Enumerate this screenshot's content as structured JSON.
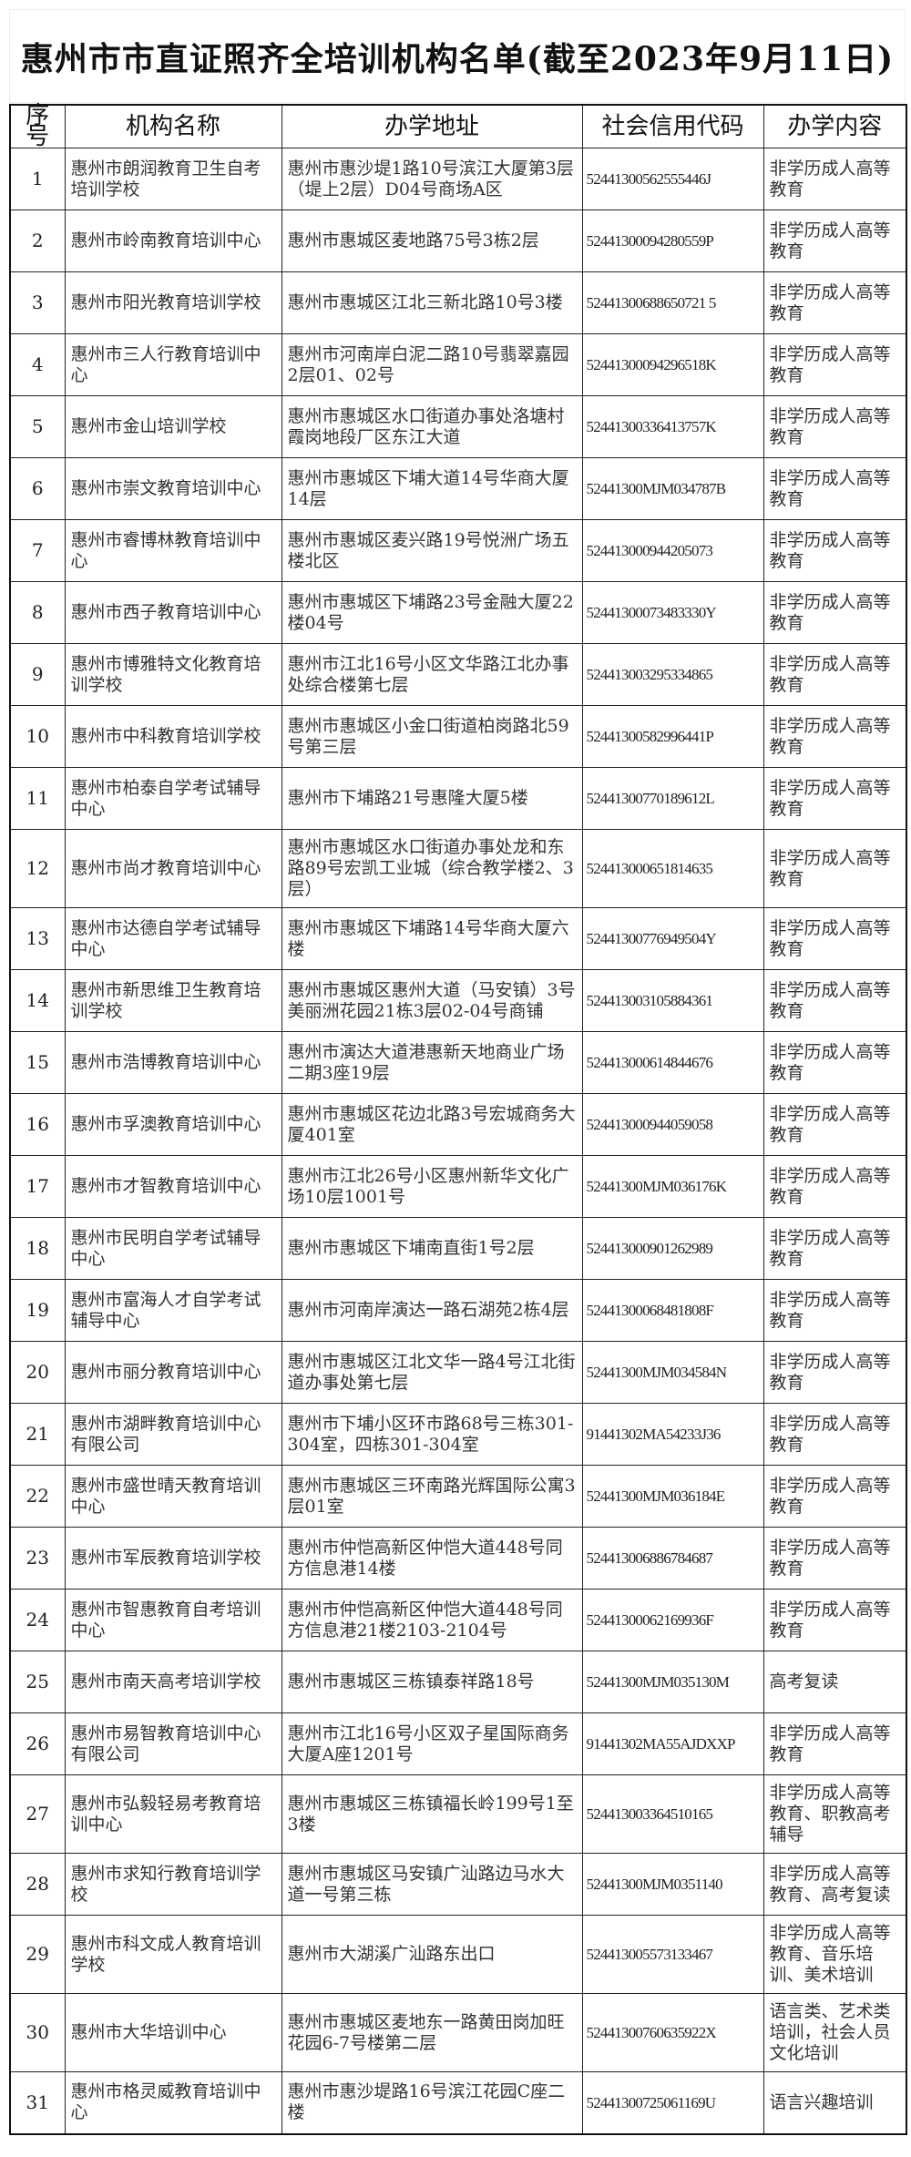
{
  "title": "惠州市市直证照齐全培训机构名单(截至2023年9月11日)",
  "columns": [
    "序号",
    "机构名称",
    "办学地址",
    "社会信用代码",
    "办学内容"
  ],
  "rows": [
    {
      "no": "1",
      "name": "惠州市朗润教育卫生自考培训学校",
      "address": "惠州市惠沙堤1路10号滨江大厦第3层（堤上2层）D04号商场A区",
      "code": "52441300562555446J",
      "content": "非学历成人高等教育"
    },
    {
      "no": "2",
      "name": "惠州市岭南教育培训中心",
      "address": "惠州市惠城区麦地路75号3栋2层",
      "code": "52441300094280559P",
      "content": "非学历成人高等教育"
    },
    {
      "no": "3",
      "name": "惠州市阳光教育培训学校",
      "address": "惠州市惠城区江北三新北路10号3楼",
      "code": "52441300688650721 5",
      "content": "非学历成人高等教育"
    },
    {
      "no": "4",
      "name": "惠州市三人行教育培训中心",
      "address": "惠州市河南岸白泥二路10号翡翠嘉园2层01、02号",
      "code": "52441300094296518K",
      "content": "非学历成人高等教育"
    },
    {
      "no": "5",
      "name": "惠州市金山培训学校",
      "address": "惠州市惠城区水口街道办事处洛塘村霞岗地段厂区东江大道",
      "code": "52441300336413757K",
      "content": "非学历成人高等教育"
    },
    {
      "no": "6",
      "name": "惠州市崇文教育培训中心",
      "address": "惠州市惠城区下埔大道14号华商大厦14层",
      "code": "52441300MJM034787B",
      "content": "非学历成人高等教育"
    },
    {
      "no": "7",
      "name": "惠州市睿博林教育培训中心",
      "address": "惠州市惠城区麦兴路19号悦洲广场五楼北区",
      "code": "524413000944205073",
      "content": "非学历成人高等教育"
    },
    {
      "no": "8",
      "name": "惠州市西子教育培训中心",
      "address": "惠州市惠城区下埔路23号金融大厦22楼04号",
      "code": "52441300073483330Y",
      "content": "非学历成人高等教育"
    },
    {
      "no": "9",
      "name": "惠州市博雅特文化教育培训学校",
      "address": "惠州市江北16号小区文华路江北办事处综合楼第七层",
      "code": "524413003295334865",
      "content": "非学历成人高等教育"
    },
    {
      "no": "10",
      "name": "惠州市中科教育培训学校",
      "address": "惠州市惠城区小金口街道柏岗路北59号第三层",
      "code": "52441300582996441P",
      "content": "非学历成人高等教育"
    },
    {
      "no": "11",
      "name": "惠州市柏泰自学考试辅导中心",
      "address": "惠州市下埔路21号惠隆大厦5楼",
      "code": "52441300770189612L",
      "content": "非学历成人高等教育"
    },
    {
      "no": "12",
      "name": "惠州市尚才教育培训中心",
      "address": "惠州市惠城区水口街道办事处龙和东路89号宏凯工业城（综合教学楼2、3层）",
      "code": "524413000651814635",
      "content": "非学历成人高等教育"
    },
    {
      "no": "13",
      "name": "惠州市达德自学考试辅导中心",
      "address": "惠州市惠城区下埔路14号华商大厦六楼",
      "code": "52441300776949504Y",
      "content": "非学历成人高等教育"
    },
    {
      "no": "14",
      "name": "惠州市新思维卫生教育培训学校",
      "address": "惠州市惠城区惠州大道（马安镇）3号美丽洲花园21栋3层02-04号商铺",
      "code": "524413003105884361",
      "content": "非学历成人高等教育"
    },
    {
      "no": "15",
      "name": "惠州市浩博教育培训中心",
      "address": "惠州市演达大道港惠新天地商业广场二期3座19层",
      "code": "524413000614844676",
      "content": "非学历成人高等教育"
    },
    {
      "no": "16",
      "name": "惠州市孚澳教育培训中心",
      "address": "惠州市惠城区花边北路3号宏城商务大厦401室",
      "code": "524413000944059058",
      "content": "非学历成人高等教育"
    },
    {
      "no": "17",
      "name": "惠州市才智教育培训中心",
      "address": "惠州市江北26号小区惠州新华文化广场10层1001号",
      "code": "52441300MJM036176K",
      "content": "非学历成人高等教育"
    },
    {
      "no": "18",
      "name": "惠州市民明自学考试辅导中心",
      "address": "惠州市惠城区下埔南直街1号2层",
      "code": "524413000901262989",
      "content": "非学历成人高等教育"
    },
    {
      "no": "19",
      "name": "惠州市富海人才自学考试辅导中心",
      "address": "惠州市河南岸演达一路石湖苑2栋4层",
      "code": "52441300068481808F",
      "content": "非学历成人高等教育"
    },
    {
      "no": "20",
      "name": "惠州市丽分教育培训中心",
      "address": "惠州市惠城区江北文华一路4号江北街道办事处第七层",
      "code": "52441300MJM034584N",
      "content": "非学历成人高等教育"
    },
    {
      "no": "21",
      "name": "惠州市湖畔教育培训中心有限公司",
      "address": "惠州市下埔小区环市路68号三栋301-304室，四栋301-304室",
      "code": "91441302MA54233J36",
      "content": "非学历成人高等教育"
    },
    {
      "no": "22",
      "name": "惠州市盛世晴天教育培训中心",
      "address": "惠州市惠城区三环南路光辉国际公寓3层01室",
      "code": "52441300MJM036184E",
      "content": "非学历成人高等教育"
    },
    {
      "no": "23",
      "name": "惠州市军辰教育培训学校",
      "address": "惠州市仲恺高新区仲恺大道448号同方信息港14楼",
      "code": "524413006886784687",
      "content": "非学历成人高等教育"
    },
    {
      "no": "24",
      "name": "惠州市智惠教育自考培训中心",
      "address": "惠州市仲恺高新区仲恺大道448号同方信息港21楼2103-2104号",
      "code": "52441300062169936F",
      "content": "非学历成人高等教育"
    },
    {
      "no": "25",
      "name": "惠州市南天高考培训学校",
      "address": "惠州市惠城区三栋镇泰祥路18号",
      "code": "52441300MJM035130M",
      "content": "高考复读"
    },
    {
      "no": "26",
      "name": "惠州市易智教育培训中心有限公司",
      "address": "惠州市江北16号小区双子星国际商务大厦A座1201号",
      "code": "91441302MA55AJDXXP",
      "content": "非学历成人高等教育"
    },
    {
      "no": "27",
      "name": "惠州市弘毅轻易考教育培训中心",
      "address": "惠州市惠城区三栋镇福长岭199号1至3楼",
      "code": "524413003364510165",
      "content": "非学历成人高等教育、职教高考辅导"
    },
    {
      "no": "28",
      "name": "惠州市求知行教育培训学校",
      "address": "惠州市惠城区马安镇广汕路边马水大道一号第三栋",
      "code": "52441300MJM0351140",
      "content": "非学历成人高等教育、高考复读"
    },
    {
      "no": "29",
      "name": "惠州市科文成人教育培训学校",
      "address": "惠州市大湖溪广汕路东出口",
      "code": "524413005573133467",
      "content": "非学历成人高等教育、音乐培训、美术培训"
    },
    {
      "no": "30",
      "name": "惠州市大华培训中心",
      "address": "惠州市惠城区麦地东一路黄田岗加旺花园6-7号楼第二层",
      "code": "52441300760635922X",
      "content": "语言类、艺术类培训，社会人员文化培训"
    },
    {
      "no": "31",
      "name": "惠州市格灵威教育培训中心",
      "address": "惠州市惠沙堤路16号滨江花园C座二楼",
      "code": "52441300725061169U",
      "content": "语言兴趣培训"
    }
  ]
}
